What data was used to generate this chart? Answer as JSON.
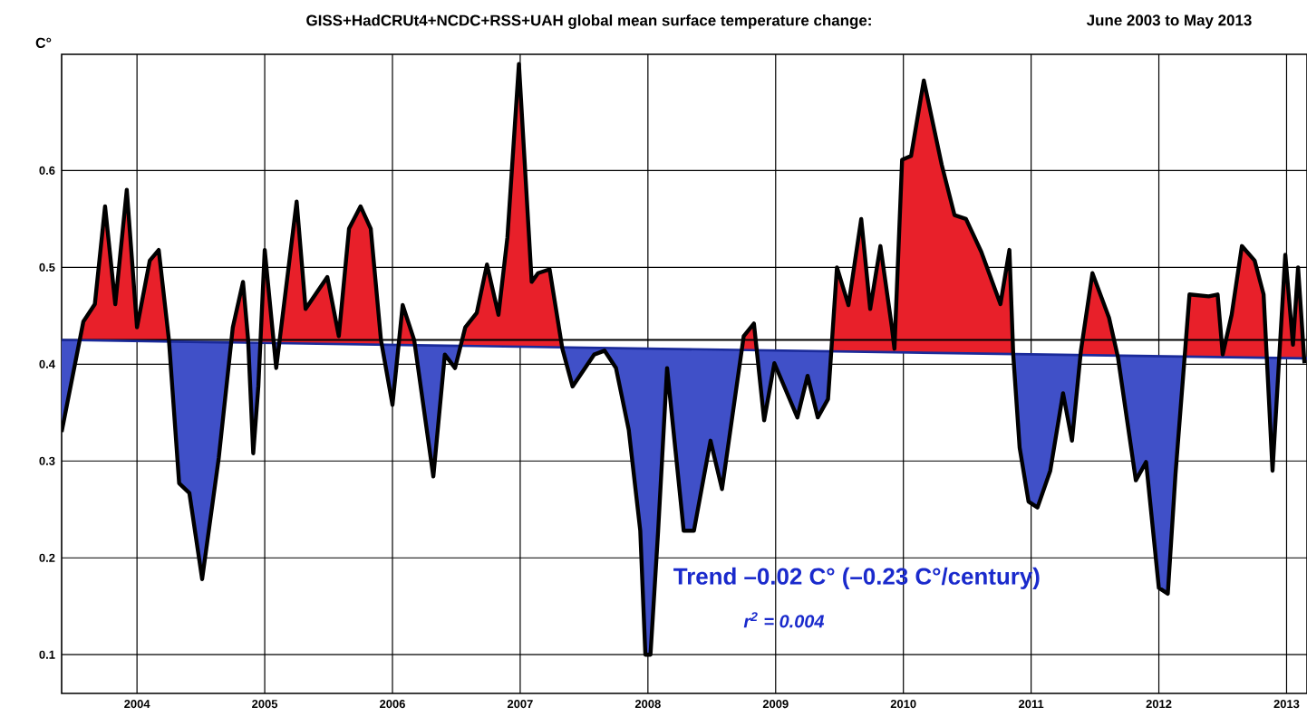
{
  "chart_data": {
    "type": "line",
    "title": "GISS+HadCRUt4+NCDC+RSS+UAH global mean surface temperature change:",
    "subtitle": "June 2003 to May 2013",
    "ylabel": "C°",
    "annotations": [
      "Trend –0.02 C° (–0.23 C°/century)",
      "r$^{2}$ = 0.004"
    ],
    "xlim": [
      2003.41,
      2013.16
    ],
    "ylim": [
      0.06,
      0.72
    ],
    "xticks": [
      2004,
      2005,
      2006,
      2007,
      2008,
      2009,
      2010,
      2011,
      2012,
      2013
    ],
    "yticks": [
      0.1,
      0.2,
      0.3,
      0.4,
      0.5,
      0.6
    ],
    "grid": true,
    "marker": "none",
    "line_style": "solid",
    "ref_lines": [
      {
        "axis": "y",
        "value": 0.425,
        "color": "#000000"
      }
    ],
    "series": [
      {
        "type": "area",
        "color": "#000000",
        "x": [
          2003.41,
          2003.58,
          2003.67,
          2003.75,
          2003.83,
          2003.92,
          2004.0,
          2004.1,
          2004.17,
          2004.25,
          2004.33,
          2004.41,
          2004.51,
          2004.64,
          2004.75,
          2004.83,
          2004.87,
          2004.91,
          2004.95,
          2005.0,
          2005.09,
          2005.25,
          2005.32,
          2005.49,
          2005.58,
          2005.66,
          2005.75,
          2005.83,
          2005.91,
          2006.0,
          2006.08,
          2006.17,
          2006.32,
          2006.41,
          2006.49,
          2006.57,
          2006.66,
          2006.74,
          2006.83,
          2006.9,
          2006.99,
          2007.09,
          2007.14,
          2007.23,
          2007.33,
          2007.41,
          2007.58,
          2007.66,
          2007.75,
          2007.85,
          2007.94,
          2007.98,
          2008.02,
          2008.08,
          2008.15,
          2008.28,
          2008.36,
          2008.49,
          2008.58,
          2008.75,
          2008.83,
          2008.91,
          2008.99,
          2009.17,
          2009.25,
          2009.33,
          2009.41,
          2009.48,
          2009.57,
          2009.67,
          2009.74,
          2009.82,
          2009.91,
          2009.93,
          2009.99,
          2010.06,
          2010.16,
          2010.3,
          2010.4,
          2010.49,
          2010.61,
          2010.76,
          2010.83,
          2010.86,
          2010.91,
          2010.98,
          2011.05,
          2011.15,
          2011.25,
          2011.32,
          2011.39,
          2011.48,
          2011.61,
          2011.68,
          2011.82,
          2011.9,
          2012.0,
          2012.07,
          2012.13,
          2012.24,
          2012.39,
          2012.46,
          2012.5,
          2012.57,
          2012.65,
          2012.75,
          2012.82,
          2012.89,
          2012.99,
          2013.05,
          2013.09,
          2013.14
        ],
        "values": [
          0.33,
          0.444,
          0.462,
          0.563,
          0.462,
          0.58,
          0.438,
          0.507,
          0.518,
          0.425,
          0.277,
          0.267,
          0.178,
          0.303,
          0.438,
          0.485,
          0.425,
          0.308,
          0.377,
          0.518,
          0.396,
          0.568,
          0.457,
          0.49,
          0.429,
          0.54,
          0.563,
          0.54,
          0.425,
          0.358,
          0.461,
          0.425,
          0.284,
          0.41,
          0.396,
          0.438,
          0.453,
          0.503,
          0.451,
          0.531,
          0.71,
          0.485,
          0.494,
          0.498,
          0.416,
          0.377,
          0.41,
          0.414,
          0.396,
          0.332,
          0.228,
          0.1,
          0.1,
          0.228,
          0.396,
          0.228,
          0.228,
          0.321,
          0.271,
          0.429,
          0.442,
          0.342,
          0.401,
          0.345,
          0.388,
          0.345,
          0.364,
          0.5,
          0.461,
          0.55,
          0.457,
          0.522,
          0.438,
          0.416,
          0.611,
          0.615,
          0.693,
          0.606,
          0.554,
          0.55,
          0.516,
          0.462,
          0.518,
          0.41,
          0.314,
          0.258,
          0.252,
          0.29,
          0.37,
          0.321,
          0.414,
          0.494,
          0.448,
          0.407,
          0.28,
          0.299,
          0.169,
          0.163,
          0.286,
          0.472,
          0.47,
          0.472,
          0.41,
          0.451,
          0.522,
          0.507,
          0.472,
          0.29,
          0.513,
          0.42,
          0.5,
          0.401
        ]
      },
      {
        "color": "#1a2a9a",
        "x": [
          2003.41,
          2013.16
        ],
        "values": [
          0.425,
          0.406
        ]
      }
    ]
  }
}
